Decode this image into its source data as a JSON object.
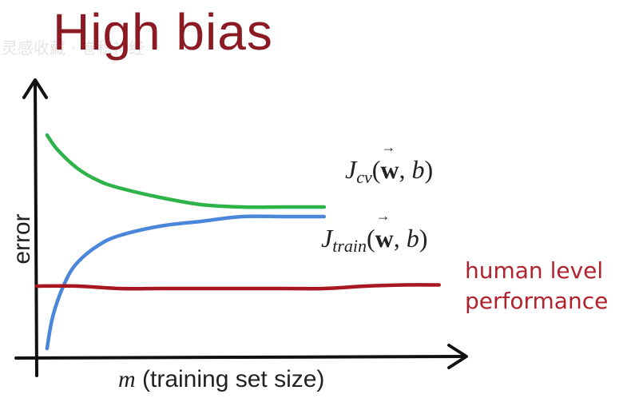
{
  "title": "High bias",
  "watermark": "灵感收藏 · 卷积神经",
  "chart_data": {
    "type": "line",
    "title": "High bias",
    "xlabel": "m (training set size)",
    "ylabel": "error",
    "xlim": [
      0,
      10
    ],
    "ylim": [
      0,
      10
    ],
    "grid": false,
    "series": [
      {
        "name": "J_cv(w,b)",
        "color": "#2eb34a",
        "x": [
          0.25,
          0.5,
          1.0,
          1.5,
          2.0,
          3.0,
          4.0,
          5.0,
          6.0,
          7.0
        ],
        "y": [
          9.1,
          8.5,
          7.7,
          7.2,
          6.9,
          6.5,
          6.2,
          6.1,
          6.1,
          6.1
        ]
      },
      {
        "name": "J_train(w,b)",
        "color": "#4a86d9",
        "x": [
          0.25,
          0.4,
          0.7,
          1.0,
          1.5,
          2.0,
          3.0,
          4.0,
          5.0,
          6.0,
          7.0
        ],
        "y": [
          0.2,
          1.6,
          3.0,
          3.8,
          4.5,
          4.9,
          5.3,
          5.5,
          5.7,
          5.7,
          5.7
        ]
      },
      {
        "name": "human level performance",
        "color": "#a8171f",
        "x": [
          0,
          1,
          2,
          3,
          4,
          5,
          6,
          7,
          8,
          9,
          9.8
        ],
        "y": [
          2.8,
          2.8,
          2.7,
          2.7,
          2.7,
          2.7,
          2.7,
          2.7,
          2.8,
          2.85,
          2.85
        ]
      }
    ],
    "labels": {
      "cv": {
        "J": "J",
        "sub": "cv",
        "w": "w",
        "b": "b"
      },
      "train": {
        "J": "J",
        "sub": "train",
        "w": "w",
        "b": "b"
      },
      "human_line1": "human level",
      "human_line2": "performance"
    },
    "xlabel_m": "m",
    "xlabel_rest": " (training set size)"
  }
}
